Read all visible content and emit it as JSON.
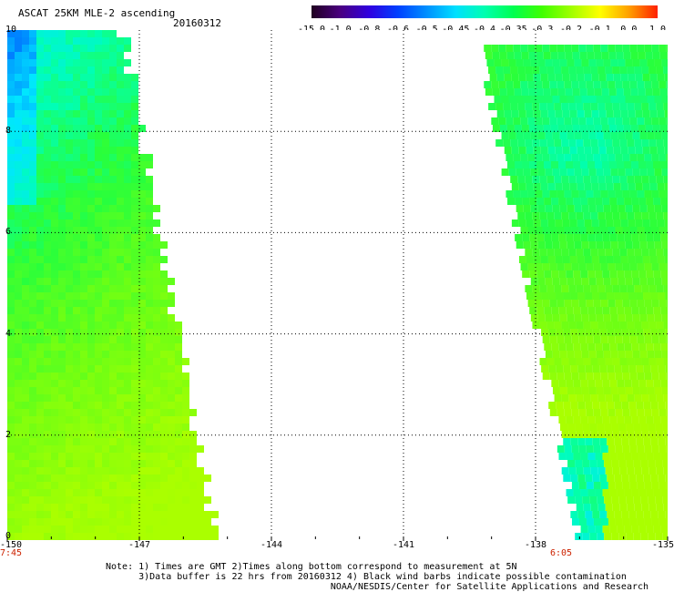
{
  "header": {
    "title": "ASCAT 25KM MLE-2 ascending",
    "date": "20160312"
  },
  "colorbar": {
    "labels": [
      "-15.0",
      "-1.0",
      "-0.8",
      "-0.6",
      "-0.5",
      "-0.45",
      "-0.4",
      "-0.35",
      "-0.3",
      "-0.2",
      "-0.1",
      "0.0",
      "1.0"
    ],
    "colors": [
      "#200020",
      "#4a0080",
      "#3000e0",
      "#0040ff",
      "#0090ff",
      "#00e0ff",
      "#00ffb0",
      "#00ff50",
      "#40ff00",
      "#a0ff00",
      "#ffff00",
      "#ffa000",
      "#ff2000"
    ]
  },
  "map": {
    "lat_labels": [
      "10",
      "8",
      "6",
      "4",
      "2",
      "0"
    ],
    "lon_labels": [
      "-150",
      "-147",
      "-144",
      "-141",
      "-138",
      "-135"
    ],
    "lat_range": [
      0,
      10
    ],
    "lon_range": [
      -150,
      -135
    ],
    "grid_lines": "dotted",
    "times": {
      "left": "7:45",
      "right": "6:05"
    }
  },
  "notes": {
    "line1": "Note: 1) Times are GMT 2)Times along bottom correspond to measurement at 5N",
    "line2": "      3)Data buffer is 22 hrs from 20160312 4) Black wind barbs indicate possible contamination",
    "line3": "                                         NOAA/NESDIS/Center for Satellite Applications and Research"
  }
}
